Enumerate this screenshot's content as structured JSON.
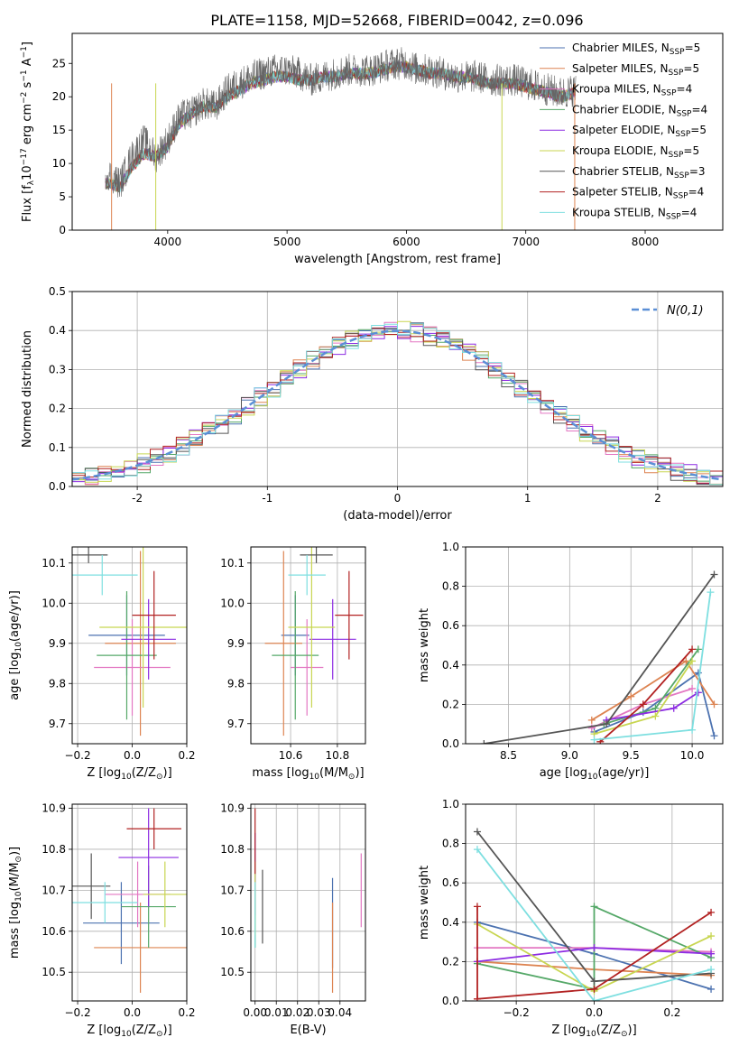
{
  "colors": {
    "series": [
      "#4c72b0",
      "#dd8452",
      "#e377c2",
      "#55a868",
      "#8c2be2",
      "#c8d651",
      "#555555",
      "#b22222",
      "#7edfe0"
    ],
    "gaussian": "#5b8fd6"
  },
  "chart_data": [
    {
      "id": "spectrum",
      "type": "line",
      "title": "PLATE=1158, MJD=52668, FIBERID=0042, z=0.096",
      "xlabel": "wavelength [Angstrom, rest frame]",
      "ylabel": "Flux [f_λ10^-17 erg cm^-2 s^-1 A^-1]",
      "xlim": [
        3200,
        8650
      ],
      "ylim": [
        0,
        29.5
      ],
      "xticks": [
        4000,
        5000,
        6000,
        7000,
        8000
      ],
      "yticks": [
        0,
        5,
        10,
        15,
        20,
        25
      ],
      "grid": false,
      "legend": "right",
      "x": [
        3500,
        3600,
        3700,
        3800,
        3900,
        4000,
        4100,
        4200,
        4300,
        4400,
        4500,
        4600,
        4700,
        4800,
        4900,
        5000,
        5100,
        5200,
        5300,
        5400,
        5500,
        5600,
        5700,
        5800,
        5900,
        6000,
        6100,
        6200,
        6300,
        6400,
        6500,
        6600,
        6700,
        6800,
        6900,
        7000,
        7100,
        7200,
        7300,
        7400
      ],
      "data_flux": [
        8.5,
        7,
        11,
        13.5,
        11,
        13.5,
        17,
        17.5,
        19,
        18.5,
        21,
        22,
        23,
        23.5,
        24,
        24,
        23.5,
        22.5,
        23,
        23.5,
        24,
        24,
        24,
        24.5,
        25,
        25,
        24,
        24,
        23.5,
        23,
        23,
        23,
        22.5,
        22.5,
        22.5,
        22,
        21.5,
        21,
        20.5,
        21
      ],
      "model_flux": [
        7,
        6.5,
        9.5,
        11.5,
        11,
        12.5,
        16,
        17.5,
        18.5,
        18.5,
        20,
        21,
        22,
        22.5,
        23,
        23,
        22.5,
        22.5,
        23,
        23,
        23.5,
        23.5,
        23.5,
        24,
        24.5,
        24.5,
        24,
        23.5,
        23.5,
        23,
        23,
        22.5,
        22,
        22,
        22,
        21.5,
        21,
        20.5,
        20,
        20.5
      ],
      "series": [
        {
          "name": "Chabrier MILES, N_SSP=5"
        },
        {
          "name": "Salpeter MILES, N_SSP=5"
        },
        {
          "name": "Kroupa MILES, N_SSP=4"
        },
        {
          "name": "Chabrier ELODIE, N_SSP=4"
        },
        {
          "name": "Salpeter ELODIE, N_SSP=5"
        },
        {
          "name": "Kroupa ELODIE, N_SSP=5"
        },
        {
          "name": "Chabrier STELIB, N_SSP=3"
        },
        {
          "name": "Salpeter STELIB, N_SSP=4"
        },
        {
          "name": "Kroupa STELIB, N_SSP=4"
        }
      ]
    },
    {
      "id": "residuals",
      "type": "step",
      "xlabel": "(data-model)/error",
      "ylabel": "Normed distribution",
      "xlim": [
        -2.5,
        2.5
      ],
      "ylim": [
        0,
        0.5
      ],
      "xticks": [
        -2,
        -1,
        0,
        1,
        2
      ],
      "yticks": [
        0.0,
        0.1,
        0.2,
        0.3,
        0.4,
        0.5
      ],
      "grid": true,
      "legend": "top-right",
      "gaussian_label": "N(0,1)",
      "bin_width": 0.1
    },
    {
      "id": "age_vs_z",
      "type": "errorbar",
      "xlabel": "Z [log10(Z/Z⊙)]",
      "ylabel": "age [log10(age/yr)]",
      "xlim": [
        -0.22,
        0.2
      ],
      "ylim": [
        9.65,
        10.14
      ],
      "xticks": [
        -0.2,
        0.0,
        0.2
      ],
      "xticklabels": [
        "−0.2",
        "0.0",
        "0.2"
      ],
      "yticks": [
        9.7,
        9.8,
        9.9,
        10.0,
        10.1
      ],
      "grid": true,
      "points": [
        {
          "x": -0.02,
          "xerr": 0.14,
          "y": 9.92,
          "yerr": 0.1
        },
        {
          "x": 0.03,
          "xerr": 0.13,
          "y": 9.9,
          "yerr": 0.23
        },
        {
          "x": 0.0,
          "xerr": 0.14,
          "y": 9.84,
          "yerr": 0.12
        },
        {
          "x": -0.02,
          "xerr": 0.11,
          "y": 9.87,
          "yerr": 0.16
        },
        {
          "x": 0.06,
          "xerr": 0.1,
          "y": 9.91,
          "yerr": 0.1
        },
        {
          "x": 0.04,
          "xerr": 0.16,
          "y": 9.94,
          "yerr": 0.2
        },
        {
          "x": -0.16,
          "xerr": 0.07,
          "y": 10.12,
          "yerr": 0.02
        },
        {
          "x": 0.08,
          "xerr": 0.08,
          "y": 9.97,
          "yerr": 0.11
        },
        {
          "x": -0.11,
          "xerr": 0.13,
          "y": 10.07,
          "yerr": 0.05
        }
      ]
    },
    {
      "id": "age_vs_mass",
      "type": "errorbar",
      "xlabel": "mass [log10(M/M⊙)]",
      "xlim": [
        10.43,
        10.92
      ],
      "ylim": [
        9.65,
        10.14
      ],
      "xticks": [
        10.6,
        10.8
      ],
      "xticklabels": [
        "10.6",
        "10.8"
      ],
      "yticks": [
        9.7,
        9.8,
        9.9,
        10.0,
        10.1
      ],
      "grid": true,
      "points": [
        {
          "x": 10.62,
          "xerr": 0.06,
          "y": 9.92,
          "yerr": 0.1
        },
        {
          "x": 10.57,
          "xerr": 0.08,
          "y": 9.9,
          "yerr": 0.23
        },
        {
          "x": 10.67,
          "xerr": 0.07,
          "y": 9.84,
          "yerr": 0.12
        },
        {
          "x": 10.62,
          "xerr": 0.1,
          "y": 9.87,
          "yerr": 0.16
        },
        {
          "x": 10.78,
          "xerr": 0.1,
          "y": 9.91,
          "yerr": 0.1
        },
        {
          "x": 10.69,
          "xerr": 0.1,
          "y": 9.94,
          "yerr": 0.2
        },
        {
          "x": 10.71,
          "xerr": 0.07,
          "y": 10.12,
          "yerr": 0.02
        },
        {
          "x": 10.85,
          "xerr": 0.06,
          "y": 9.97,
          "yerr": 0.11
        },
        {
          "x": 10.67,
          "xerr": 0.08,
          "y": 10.07,
          "yerr": 0.05
        }
      ]
    },
    {
      "id": "weight_vs_age",
      "type": "line",
      "xlabel": "age [log10(age/yr)]",
      "ylabel": "mass weight",
      "xlim": [
        8.15,
        10.25
      ],
      "ylim": [
        0,
        1
      ],
      "xticks": [
        8.5,
        9.0,
        9.5,
        10.0
      ],
      "xticklabels": [
        "8.5",
        "9.0",
        "9.5",
        "10.0"
      ],
      "yticks": [
        0,
        0.2,
        0.4,
        0.6,
        0.8,
        1.0
      ],
      "yticklabels": [
        "0.0",
        "0.2",
        "0.4",
        "0.6",
        "0.8",
        "1.0"
      ],
      "grid": true,
      "series": [
        {
          "x": [
            9.2,
            9.6,
            10.05,
            10.18
          ],
          "y": [
            0.06,
            0.16,
            0.36,
            0.04
          ]
        },
        {
          "x": [
            9.18,
            9.5,
            9.95,
            10.18
          ],
          "y": [
            0.12,
            0.24,
            0.42,
            0.2
          ]
        },
        {
          "x": [
            9.18,
            9.6,
            10.0
          ],
          "y": [
            0.08,
            0.2,
            0.28
          ]
        },
        {
          "x": [
            9.28,
            9.7,
            10.05
          ],
          "y": [
            0.1,
            0.18,
            0.48
          ]
        },
        {
          "x": [
            9.3,
            9.85,
            10.05
          ],
          "y": [
            0.12,
            0.18,
            0.26
          ]
        },
        {
          "x": [
            9.2,
            9.7,
            10.0
          ],
          "y": [
            0.05,
            0.14,
            0.42
          ]
        },
        {
          "x": [
            8.3,
            9.3,
            10.18
          ],
          "y": [
            0.0,
            0.1,
            0.86
          ]
        },
        {
          "x": [
            9.25,
            9.6,
            10.0
          ],
          "y": [
            0.01,
            0.2,
            0.48
          ]
        },
        {
          "x": [
            9.2,
            10.0,
            10.15
          ],
          "y": [
            0.02,
            0.07,
            0.77
          ]
        }
      ]
    },
    {
      "id": "mass_vs_z",
      "type": "errorbar",
      "xlabel": "Z [log10(Z/Z⊙)]",
      "ylabel": "mass [log10(M/M⊙)]",
      "xlim": [
        -0.22,
        0.2
      ],
      "ylim": [
        10.43,
        10.91
      ],
      "xticks": [
        -0.2,
        0.0,
        0.2
      ],
      "xticklabels": [
        "−0.2",
        "0.0",
        "0.2"
      ],
      "yticks": [
        10.5,
        10.6,
        10.7,
        10.8,
        10.9
      ],
      "grid": true,
      "points": [
        {
          "x": -0.04,
          "xerr": 0.14,
          "y": 10.62,
          "yerr": 0.1
        },
        {
          "x": 0.03,
          "xerr": 0.17,
          "y": 10.56,
          "yerr": 0.11
        },
        {
          "x": 0.02,
          "xerr": 0.12,
          "y": 10.69,
          "yerr": 0.08
        },
        {
          "x": 0.06,
          "xerr": 0.1,
          "y": 10.66,
          "yerr": 0.1
        },
        {
          "x": 0.06,
          "xerr": 0.11,
          "y": 10.78,
          "yerr": 0.12
        },
        {
          "x": 0.12,
          "xerr": 0.08,
          "y": 10.69,
          "yerr": 0.08
        },
        {
          "x": -0.15,
          "xerr": 0.07,
          "y": 10.71,
          "yerr": 0.08
        },
        {
          "x": 0.08,
          "xerr": 0.1,
          "y": 10.85,
          "yerr": 0.05
        },
        {
          "x": -0.1,
          "xerr": 0.12,
          "y": 10.67,
          "yerr": 0.05
        }
      ]
    },
    {
      "id": "mass_vs_ebv",
      "type": "errorbar",
      "xlabel": "E(B-V)",
      "xlim": [
        -0.002,
        0.052
      ],
      "ylim": [
        10.43,
        10.91
      ],
      "xticks": [
        0.0,
        0.01,
        0.02,
        0.03,
        0.04
      ],
      "xticklabels": [
        "0.00",
        "0.01",
        "0.02",
        "0.03",
        "0.04"
      ],
      "yticks": [
        10.5,
        10.6,
        10.7,
        10.8,
        10.9
      ],
      "grid": true,
      "points": [
        {
          "x": 0.0365,
          "xerr": 0,
          "y": 10.62,
          "yerr": 0.11
        },
        {
          "x": 0.0365,
          "xerr": 0,
          "y": 10.56,
          "yerr": 0.11
        },
        {
          "x": 0.05,
          "xerr": 0,
          "y": 10.7,
          "yerr": 0.09
        },
        {
          "x": 0.0,
          "xerr": 0,
          "y": 10.65,
          "yerr": 0.09
        },
        {
          "x": 0.0,
          "xerr": 0,
          "y": 10.74,
          "yerr": 0.1
        },
        {
          "x": 0.0,
          "xerr": 0,
          "y": 10.68,
          "yerr": 0.09
        },
        {
          "x": 0.0035,
          "xerr": 0,
          "y": 10.66,
          "yerr": 0.09
        },
        {
          "x": 0.0,
          "xerr": 0,
          "y": 10.82,
          "yerr": 0.08
        },
        {
          "x": 0.0,
          "xerr": 0,
          "y": 10.64,
          "yerr": 0.08
        }
      ]
    },
    {
      "id": "weight_vs_z",
      "type": "line",
      "xlabel": "Z [log10(Z/Z⊙)]",
      "ylabel": "mass weight",
      "xlim": [
        -0.33,
        0.33
      ],
      "ylim": [
        0,
        1
      ],
      "xticks": [
        -0.2,
        0.0,
        0.2
      ],
      "xticklabels": [
        "−0.2",
        "0.0",
        "0.2"
      ],
      "yticks": [
        0,
        0.2,
        0.4,
        0.6,
        0.8,
        1.0
      ],
      "yticklabels": [
        "0.0",
        "0.2",
        "0.4",
        "0.6",
        "0.8",
        "1.0"
      ],
      "grid": true,
      "series": [
        {
          "x": [
            -0.3,
            0.0,
            0.3
          ],
          "y": [
            0.4,
            0.24,
            0.06
          ]
        },
        {
          "x": [
            -0.3,
            0.0,
            0.3
          ],
          "y": [
            0.2,
            0.16,
            0.13
          ]
        },
        {
          "x": [
            -0.3,
            0.0,
            0.3
          ],
          "y": [
            0.27,
            0.27,
            0.25
          ]
        },
        {
          "x": [
            -0.3,
            0.0,
            0.0,
            0.3
          ],
          "y": [
            0.19,
            0.06,
            0.48,
            0.22
          ]
        },
        {
          "x": [
            -0.3,
            0.0,
            0.3
          ],
          "y": [
            0.2,
            0.27,
            0.24
          ]
        },
        {
          "x": [
            -0.3,
            0.0,
            0.3
          ],
          "y": [
            0.39,
            0.05,
            0.33
          ]
        },
        {
          "x": [
            -0.3,
            0.0,
            0.3
          ],
          "y": [
            0.86,
            0.1,
            0.14
          ]
        },
        {
          "x": [
            -0.3,
            -0.3,
            0.0,
            0.3
          ],
          "y": [
            0.48,
            0.01,
            0.06,
            0.45
          ]
        },
        {
          "x": [
            -0.3,
            0.0,
            0.3
          ],
          "y": [
            0.77,
            0.0,
            0.16
          ]
        }
      ]
    }
  ]
}
